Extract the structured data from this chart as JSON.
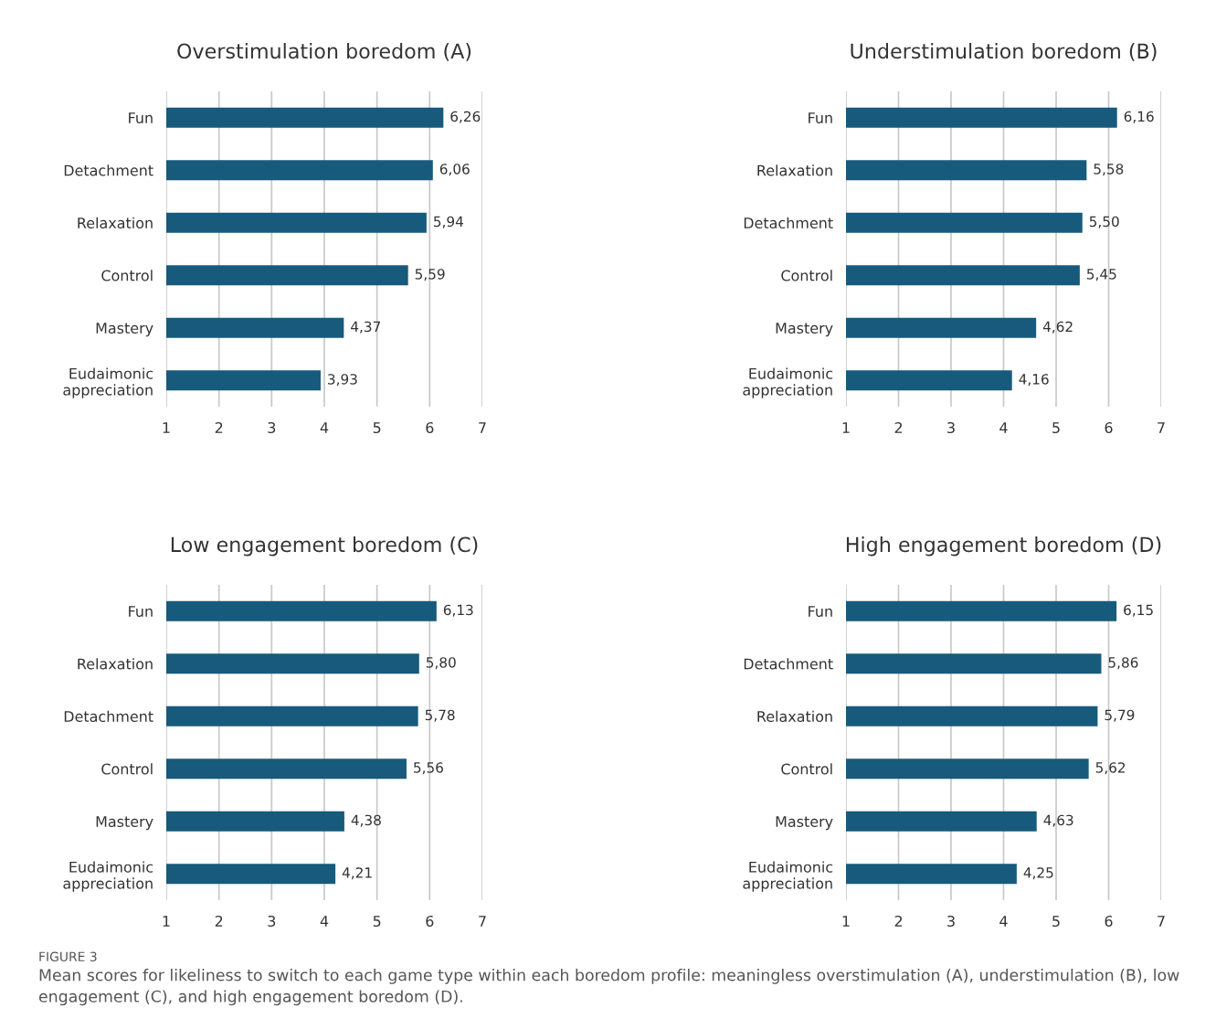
{
  "chart_data": [
    {
      "type": "bar",
      "orientation": "horizontal",
      "title": "Overstimulation boredom (A)",
      "categories": [
        "Fun",
        "Detachment",
        "Relaxation",
        "Control",
        "Mastery",
        "Eudaimonic\nappreciation"
      ],
      "values": [
        6.26,
        6.06,
        5.94,
        5.59,
        4.37,
        3.93
      ],
      "value_labels": [
        "6,26",
        "6,06",
        "5,94",
        "5,59",
        "4,37",
        "3,93"
      ],
      "color": "#175a7c",
      "xlim": [
        1,
        7
      ],
      "xticks": [
        1,
        2,
        3,
        4,
        5,
        6,
        7
      ],
      "grid": "x",
      "legend": false
    },
    {
      "type": "bar",
      "orientation": "horizontal",
      "title": "Understimulation boredom (B)",
      "categories": [
        "Fun",
        "Relaxation",
        "Detachment",
        "Control",
        "Mastery",
        "Eudaimonic\nappreciation"
      ],
      "values": [
        6.16,
        5.58,
        5.5,
        5.45,
        4.62,
        4.16
      ],
      "value_labels": [
        "6,16",
        "5,58",
        "5,50",
        "5,45",
        "4,62",
        "4,16"
      ],
      "color": "#175a7c",
      "xlim": [
        1,
        7
      ],
      "xticks": [
        1,
        2,
        3,
        4,
        5,
        6,
        7
      ],
      "grid": "x",
      "legend": false
    },
    {
      "type": "bar",
      "orientation": "horizontal",
      "title": "Low engagement boredom (C)",
      "categories": [
        "Fun",
        "Relaxation",
        "Detachment",
        "Control",
        "Mastery",
        "Eudaimonic\nappreciation"
      ],
      "values": [
        6.13,
        5.8,
        5.78,
        5.56,
        4.38,
        4.21
      ],
      "value_labels": [
        "6,13",
        "5,80",
        "5,78",
        "5,56",
        "4,38",
        "4,21"
      ],
      "color": "#175a7c",
      "xlim": [
        1,
        7
      ],
      "xticks": [
        1,
        2,
        3,
        4,
        5,
        6,
        7
      ],
      "grid": "x",
      "legend": false
    },
    {
      "type": "bar",
      "orientation": "horizontal",
      "title": "High engagement boredom (D)",
      "categories": [
        "Fun",
        "Detachment",
        "Relaxation",
        "Control",
        "Mastery",
        "Eudaimonic\nappreciation"
      ],
      "values": [
        6.15,
        5.86,
        5.79,
        5.62,
        4.63,
        4.25
      ],
      "value_labels": [
        "6,15",
        "5,86",
        "5,79",
        "5,62",
        "4,63",
        "4,25"
      ],
      "color": "#175a7c",
      "xlim": [
        1,
        7
      ],
      "xticks": [
        1,
        2,
        3,
        4,
        5,
        6,
        7
      ],
      "grid": "x",
      "legend": false,
      "annotations": [
        "FIGURE 3",
        "Mean scores for likeliness to switch to each game type within each boredom profile: meaningless overstimulation (A), understimulation (B), low\nengagement (C), and high engagement boredom (D)."
      ]
    }
  ]
}
